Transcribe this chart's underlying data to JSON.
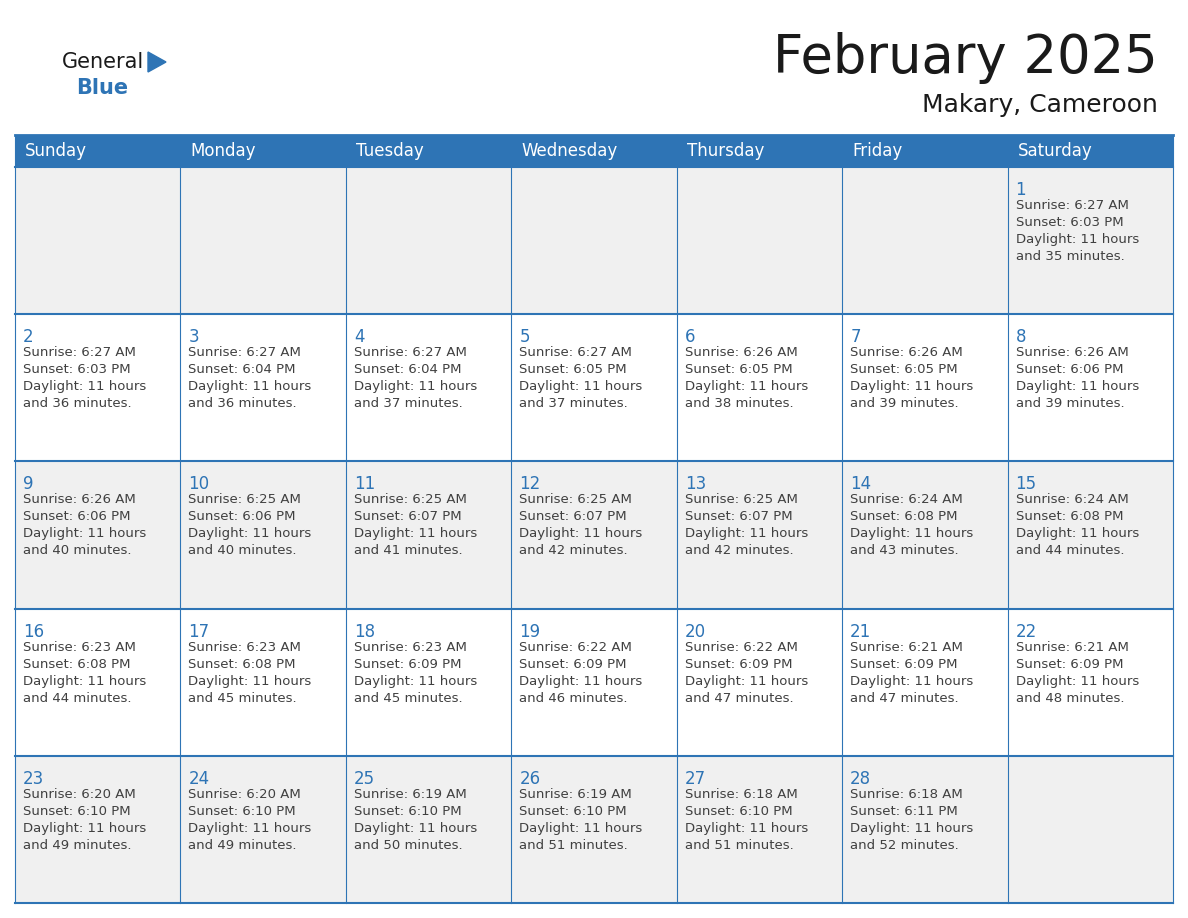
{
  "title": "February 2025",
  "subtitle": "Makary, Cameroon",
  "header_bg": "#2E74B5",
  "header_text_color": "#FFFFFF",
  "day_names": [
    "Sunday",
    "Monday",
    "Tuesday",
    "Wednesday",
    "Thursday",
    "Friday",
    "Saturday"
  ],
  "cell_bg_white": "#FFFFFF",
  "cell_bg_gray": "#F0F0F0",
  "border_color": "#2E74B5",
  "date_color": "#2E74B5",
  "text_color": "#404040",
  "logo_general_color": "#1a1a1a",
  "logo_blue_color": "#2E74B5",
  "days": [
    {
      "date": 1,
      "row": 0,
      "col": 6,
      "sunrise": "6:27 AM",
      "sunset": "6:03 PM",
      "daylight_hours": 11,
      "daylight_minutes": 35
    },
    {
      "date": 2,
      "row": 1,
      "col": 0,
      "sunrise": "6:27 AM",
      "sunset": "6:03 PM",
      "daylight_hours": 11,
      "daylight_minutes": 36
    },
    {
      "date": 3,
      "row": 1,
      "col": 1,
      "sunrise": "6:27 AM",
      "sunset": "6:04 PM",
      "daylight_hours": 11,
      "daylight_minutes": 36
    },
    {
      "date": 4,
      "row": 1,
      "col": 2,
      "sunrise": "6:27 AM",
      "sunset": "6:04 PM",
      "daylight_hours": 11,
      "daylight_minutes": 37
    },
    {
      "date": 5,
      "row": 1,
      "col": 3,
      "sunrise": "6:27 AM",
      "sunset": "6:05 PM",
      "daylight_hours": 11,
      "daylight_minutes": 37
    },
    {
      "date": 6,
      "row": 1,
      "col": 4,
      "sunrise": "6:26 AM",
      "sunset": "6:05 PM",
      "daylight_hours": 11,
      "daylight_minutes": 38
    },
    {
      "date": 7,
      "row": 1,
      "col": 5,
      "sunrise": "6:26 AM",
      "sunset": "6:05 PM",
      "daylight_hours": 11,
      "daylight_minutes": 39
    },
    {
      "date": 8,
      "row": 1,
      "col": 6,
      "sunrise": "6:26 AM",
      "sunset": "6:06 PM",
      "daylight_hours": 11,
      "daylight_minutes": 39
    },
    {
      "date": 9,
      "row": 2,
      "col": 0,
      "sunrise": "6:26 AM",
      "sunset": "6:06 PM",
      "daylight_hours": 11,
      "daylight_minutes": 40
    },
    {
      "date": 10,
      "row": 2,
      "col": 1,
      "sunrise": "6:25 AM",
      "sunset": "6:06 PM",
      "daylight_hours": 11,
      "daylight_minutes": 40
    },
    {
      "date": 11,
      "row": 2,
      "col": 2,
      "sunrise": "6:25 AM",
      "sunset": "6:07 PM",
      "daylight_hours": 11,
      "daylight_minutes": 41
    },
    {
      "date": 12,
      "row": 2,
      "col": 3,
      "sunrise": "6:25 AM",
      "sunset": "6:07 PM",
      "daylight_hours": 11,
      "daylight_minutes": 42
    },
    {
      "date": 13,
      "row": 2,
      "col": 4,
      "sunrise": "6:25 AM",
      "sunset": "6:07 PM",
      "daylight_hours": 11,
      "daylight_minutes": 42
    },
    {
      "date": 14,
      "row": 2,
      "col": 5,
      "sunrise": "6:24 AM",
      "sunset": "6:08 PM",
      "daylight_hours": 11,
      "daylight_minutes": 43
    },
    {
      "date": 15,
      "row": 2,
      "col": 6,
      "sunrise": "6:24 AM",
      "sunset": "6:08 PM",
      "daylight_hours": 11,
      "daylight_minutes": 44
    },
    {
      "date": 16,
      "row": 3,
      "col": 0,
      "sunrise": "6:23 AM",
      "sunset": "6:08 PM",
      "daylight_hours": 11,
      "daylight_minutes": 44
    },
    {
      "date": 17,
      "row": 3,
      "col": 1,
      "sunrise": "6:23 AM",
      "sunset": "6:08 PM",
      "daylight_hours": 11,
      "daylight_minutes": 45
    },
    {
      "date": 18,
      "row": 3,
      "col": 2,
      "sunrise": "6:23 AM",
      "sunset": "6:09 PM",
      "daylight_hours": 11,
      "daylight_minutes": 45
    },
    {
      "date": 19,
      "row": 3,
      "col": 3,
      "sunrise": "6:22 AM",
      "sunset": "6:09 PM",
      "daylight_hours": 11,
      "daylight_minutes": 46
    },
    {
      "date": 20,
      "row": 3,
      "col": 4,
      "sunrise": "6:22 AM",
      "sunset": "6:09 PM",
      "daylight_hours": 11,
      "daylight_minutes": 47
    },
    {
      "date": 21,
      "row": 3,
      "col": 5,
      "sunrise": "6:21 AM",
      "sunset": "6:09 PM",
      "daylight_hours": 11,
      "daylight_minutes": 47
    },
    {
      "date": 22,
      "row": 3,
      "col": 6,
      "sunrise": "6:21 AM",
      "sunset": "6:09 PM",
      "daylight_hours": 11,
      "daylight_minutes": 48
    },
    {
      "date": 23,
      "row": 4,
      "col": 0,
      "sunrise": "6:20 AM",
      "sunset": "6:10 PM",
      "daylight_hours": 11,
      "daylight_minutes": 49
    },
    {
      "date": 24,
      "row": 4,
      "col": 1,
      "sunrise": "6:20 AM",
      "sunset": "6:10 PM",
      "daylight_hours": 11,
      "daylight_minutes": 49
    },
    {
      "date": 25,
      "row": 4,
      "col": 2,
      "sunrise": "6:19 AM",
      "sunset": "6:10 PM",
      "daylight_hours": 11,
      "daylight_minutes": 50
    },
    {
      "date": 26,
      "row": 4,
      "col": 3,
      "sunrise": "6:19 AM",
      "sunset": "6:10 PM",
      "daylight_hours": 11,
      "daylight_minutes": 51
    },
    {
      "date": 27,
      "row": 4,
      "col": 4,
      "sunrise": "6:18 AM",
      "sunset": "6:10 PM",
      "daylight_hours": 11,
      "daylight_minutes": 51
    },
    {
      "date": 28,
      "row": 4,
      "col": 5,
      "sunrise": "6:18 AM",
      "sunset": "6:11 PM",
      "daylight_hours": 11,
      "daylight_minutes": 52
    }
  ],
  "num_rows": 5,
  "num_cols": 7
}
